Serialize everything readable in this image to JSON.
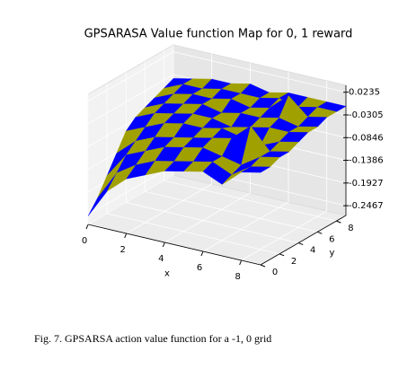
{
  "chart_data": {
    "type": "surface",
    "title": "GPSARASA Value function Map for 0, 1 reward",
    "x_label": "x",
    "y_label": "y",
    "x": [
      0,
      1,
      2,
      3,
      4,
      5,
      6,
      7,
      8,
      9
    ],
    "y": [
      0,
      1,
      2,
      3,
      4,
      5,
      6,
      7,
      8,
      9
    ],
    "z": [
      [
        -0.25,
        -0.18,
        -0.14,
        -0.12,
        -0.1,
        -0.09,
        -0.08,
        -0.1,
        -0.06,
        -0.05
      ],
      [
        -0.22,
        -0.15,
        -0.12,
        -0.1,
        -0.09,
        -0.08,
        -0.07,
        -0.09,
        -0.06,
        -0.05
      ],
      [
        -0.18,
        -0.12,
        -0.1,
        -0.08,
        -0.07,
        -0.06,
        -0.07,
        -0.08,
        -0.05,
        -0.04
      ],
      [
        -0.14,
        -0.1,
        -0.08,
        -0.07,
        -0.06,
        -0.05,
        -0.04,
        0.0,
        -0.05,
        -0.04
      ],
      [
        -0.1,
        -0.08,
        -0.06,
        -0.05,
        -0.05,
        -0.04,
        -0.05,
        -0.06,
        -0.04,
        -0.03
      ],
      [
        -0.08,
        -0.06,
        -0.05,
        -0.04,
        -0.04,
        -0.05,
        -0.04,
        -0.03,
        -0.03,
        -0.02
      ],
      [
        -0.07,
        -0.05,
        -0.04,
        -0.03,
        -0.04,
        -0.03,
        -0.03,
        -0.02,
        -0.03,
        -0.02
      ],
      [
        -0.06,
        -0.04,
        -0.03,
        -0.03,
        -0.02,
        -0.03,
        -0.02,
        0.02,
        -0.02,
        -0.01
      ],
      [
        -0.05,
        -0.03,
        -0.03,
        -0.02,
        -0.02,
        -0.02,
        -0.01,
        -0.02,
        -0.01,
        -0.01
      ],
      [
        -0.04,
        -0.03,
        -0.02,
        -0.02,
        -0.01,
        -0.02,
        -0.01,
        -0.01,
        -0.01,
        -0.01
      ]
    ],
    "colors": [
      "#0000ff",
      "#a0a000"
    ],
    "xlim": [
      0,
      9
    ],
    "ylim": [
      0,
      9
    ],
    "zlim": [
      -0.27,
      0.04
    ],
    "xticks": [
      0,
      2,
      4,
      6,
      8
    ],
    "yticks": [
      0,
      2,
      4,
      6,
      8
    ],
    "zticks": [
      0.0235,
      -0.0305,
      -0.0846,
      -0.1386,
      -0.1927,
      -0.2467
    ],
    "grid": true
  },
  "caption": "Fig. 7.  GPSARSA action value function for a -1, 0 grid"
}
